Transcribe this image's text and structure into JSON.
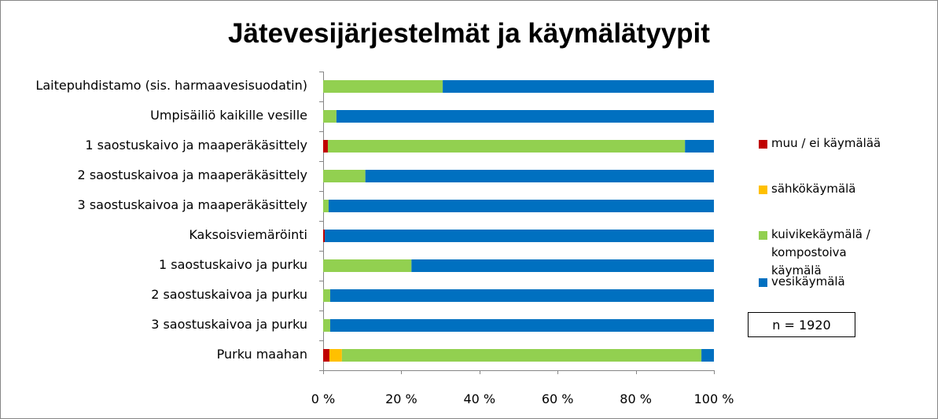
{
  "chart_data": {
    "type": "bar",
    "orientation": "horizontal-stacked-100",
    "title": "Jätevesijärjestelmät ja käymälätyypit",
    "categories": [
      "Laitepuhdistamo (sis. harmaavesisuodatin)",
      "Umpisäiliö kaikille vesille",
      "1 saostuskaivo ja maaperäkäsittely",
      "2 saostuskaivoa ja maaperäkäsittely",
      "3 saostuskaivoa ja maaperäkäsittely",
      "Kaksoisviemäröinti",
      "1 saostuskaivo ja purku",
      "2 saostuskaivoa ja purku",
      "3 saostuskaivoa ja purku",
      "Purku maahan"
    ],
    "series": [
      {
        "name": "muu / ei käymälää",
        "color": "#C00000",
        "values": [
          0,
          0,
          1.2,
          0,
          0,
          0.4,
          0,
          0,
          0,
          1.6
        ]
      },
      {
        "name": "sähkökäymälä",
        "color": "#FFC000",
        "values": [
          0,
          0,
          0,
          0,
          0,
          0,
          0,
          0,
          0,
          3.2
        ]
      },
      {
        "name": "kuivikekäymälä / kompostoiva käymälä",
        "color": "#92D050",
        "values": [
          30.6,
          3.4,
          91.4,
          10.8,
          1.4,
          0,
          22.6,
          1.8,
          1.8,
          92.0
        ]
      },
      {
        "name": "vesikäymälä",
        "color": "#0070C0",
        "values": [
          69.4,
          96.6,
          7.4,
          89.2,
          98.6,
          99.6,
          77.4,
          98.2,
          98.2,
          3.2
        ]
      }
    ],
    "xlim": [
      0,
      100
    ],
    "xticks": [
      "0 %",
      "20 %",
      "40 %",
      "60 %",
      "80 %",
      "100 %"
    ],
    "legend": "right",
    "annotation": "n = 1920"
  }
}
